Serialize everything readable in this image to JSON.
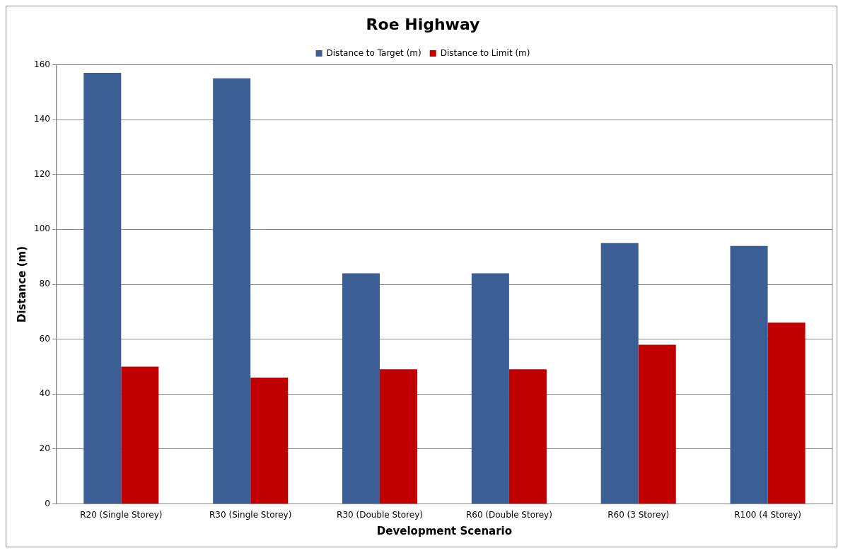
{
  "chart_data": {
    "type": "bar",
    "title": "Roe Highway",
    "xlabel": "Development Scenario",
    "ylabel": "Distance (m)",
    "categories": [
      "R20 (Single Storey)",
      "R30 (Single Storey)",
      "R30 (Double Storey)",
      "R60 (Double Storey)",
      "R60 (3 Storey)",
      "R100 (4 Storey)"
    ],
    "series": [
      {
        "name": "Distance to Target (m)",
        "color": "#3b5e95",
        "values": [
          157,
          155,
          84,
          84,
          95,
          94
        ]
      },
      {
        "name": "Distance to Limit (m)",
        "color": "#c00000",
        "values": [
          50,
          46,
          49,
          49,
          58,
          66
        ]
      }
    ],
    "ylim": [
      0,
      160
    ],
    "yticks": [
      0,
      20,
      40,
      60,
      80,
      100,
      120,
      140,
      160
    ],
    "grid": "y",
    "legend": "top"
  }
}
